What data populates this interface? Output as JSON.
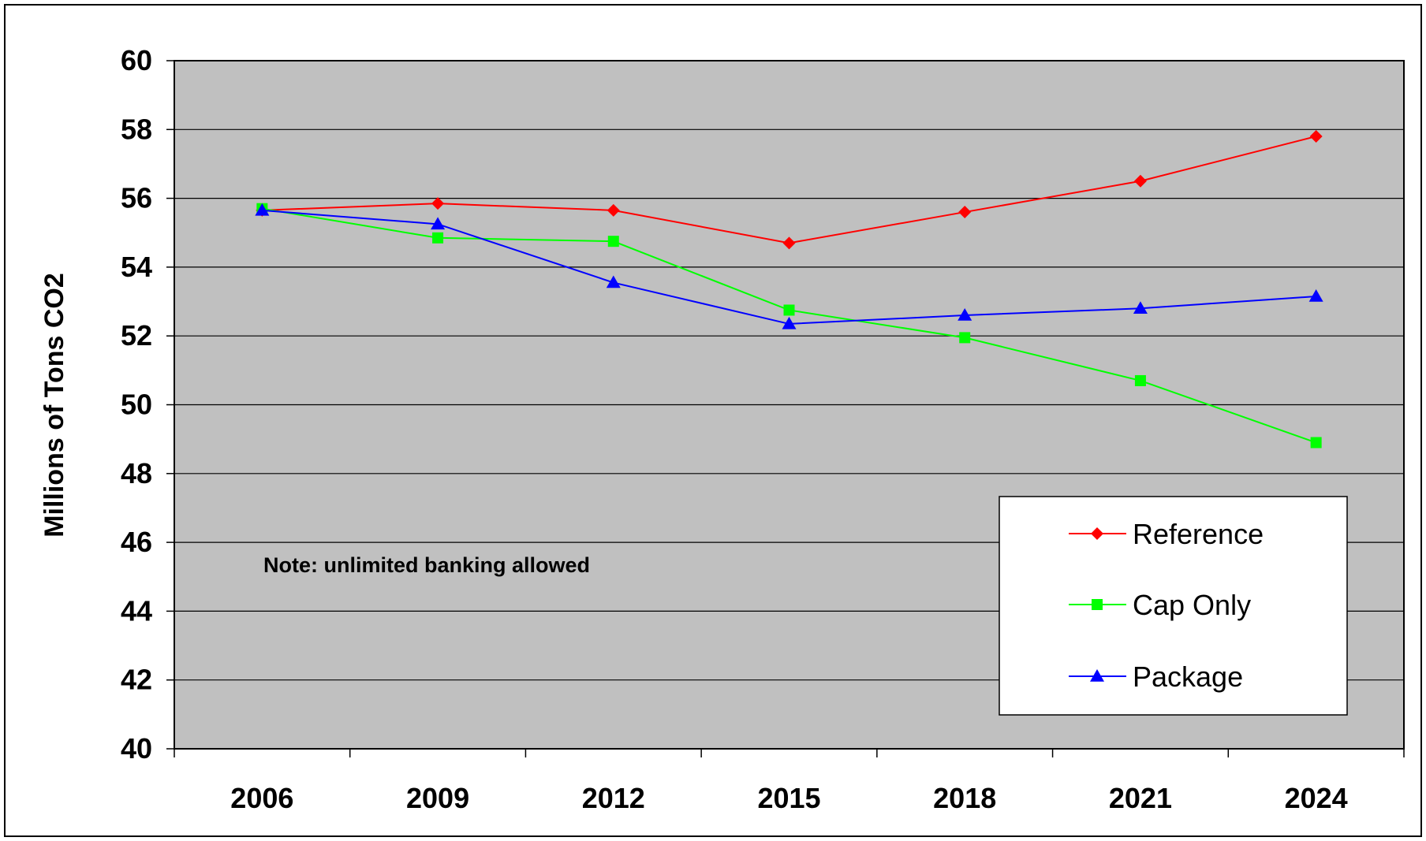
{
  "chart_data": {
    "type": "line",
    "title": "",
    "xlabel": "",
    "ylabel": "Millions of Tons CO2",
    "categories": [
      "2006",
      "2009",
      "2012",
      "2015",
      "2018",
      "2021",
      "2024"
    ],
    "ylim": [
      40,
      60
    ],
    "yticks": [
      40,
      42,
      44,
      46,
      48,
      50,
      52,
      54,
      56,
      58,
      60
    ],
    "grid": true,
    "plot_background": "#C0C0C0",
    "legend_position": "bottom-right",
    "note": "Note:  unlimited banking allowed",
    "series": [
      {
        "name": "Reference",
        "color": "#FF0000",
        "marker": "diamond",
        "values": [
          55.65,
          55.85,
          55.65,
          54.7,
          55.6,
          56.5,
          57.8
        ]
      },
      {
        "name": "Cap Only",
        "color": "#00FF00",
        "marker": "square",
        "values": [
          55.7,
          54.85,
          54.75,
          52.75,
          51.95,
          50.7,
          48.9
        ]
      },
      {
        "name": "Package",
        "color": "#0000FF",
        "marker": "triangle",
        "values": [
          55.65,
          55.25,
          53.55,
          52.35,
          52.6,
          52.8,
          53.15
        ]
      }
    ]
  }
}
